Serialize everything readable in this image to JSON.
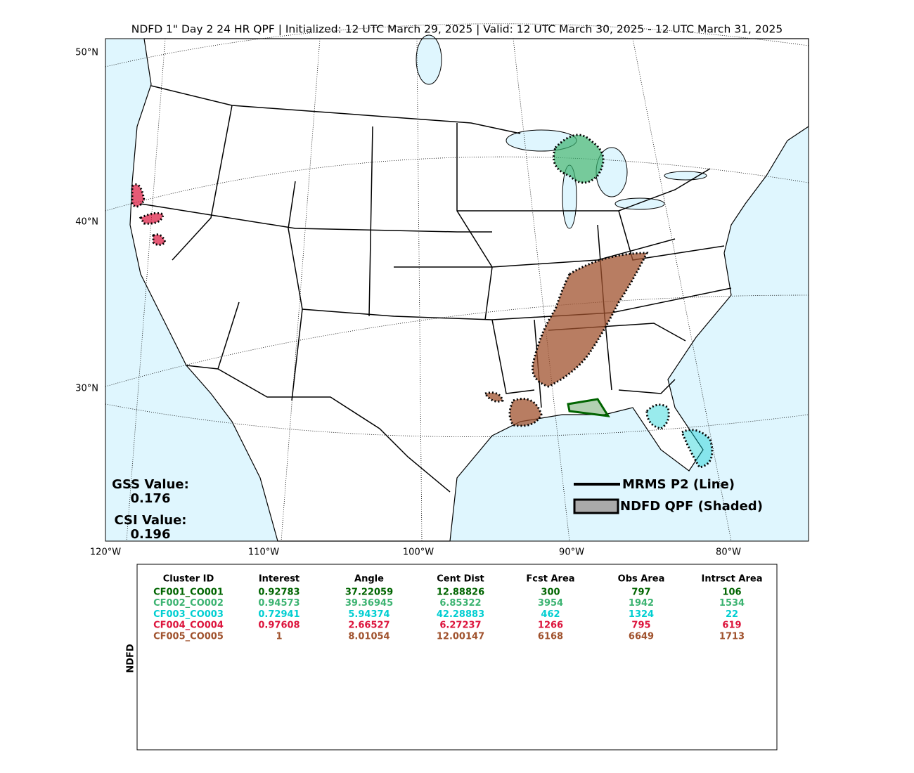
{
  "title": "NDFD 1\" Day 2 24 HR QPF | Initialized: 12 UTC March 29, 2025 | Valid: 12 UTC March 30, 2025 - 12 UTC March 31, 2025",
  "map": {
    "lat_labels": [
      "50°N",
      "40°N",
      "30°N"
    ],
    "lon_labels": [
      "120°W",
      "110°W",
      "100°W",
      "90°W",
      "80°W"
    ],
    "stats": {
      "gss_label": "GSS Value:",
      "gss_value": "0.176",
      "csi_label": "CSI Value:",
      "csi_value": "0.196"
    },
    "legend": {
      "line": "MRMS P2 (Line)",
      "shaded": "NDFD QPF (Shaded)"
    }
  },
  "table": {
    "side_label": "NDFD",
    "headers": [
      "Cluster ID",
      "Interest",
      "Angle",
      "Cent Dist",
      "Fcst Area",
      "Obs Area",
      "Intrsct Area"
    ],
    "row_colors": [
      "#006400",
      "#3cb371",
      "#00ced1",
      "#dc143c",
      "#a0522d"
    ],
    "rows": [
      [
        "CF001_CO001",
        "0.92783",
        "37.22059",
        "12.88826",
        "300",
        "797",
        "106"
      ],
      [
        "CF002_CO002",
        "0.94573",
        "39.36945",
        "6.85322",
        "3954",
        "1942",
        "1534"
      ],
      [
        "CF003_CO003",
        "0.72941",
        "5.94374",
        "42.28883",
        "462",
        "1324",
        "22"
      ],
      [
        "CF004_CO004",
        "0.97608",
        "2.66527",
        "6.27237",
        "1266",
        "795",
        "619"
      ],
      [
        "CF005_CO005",
        "1",
        "8.01054",
        "12.00147",
        "6168",
        "6649",
        "1713"
      ]
    ]
  }
}
